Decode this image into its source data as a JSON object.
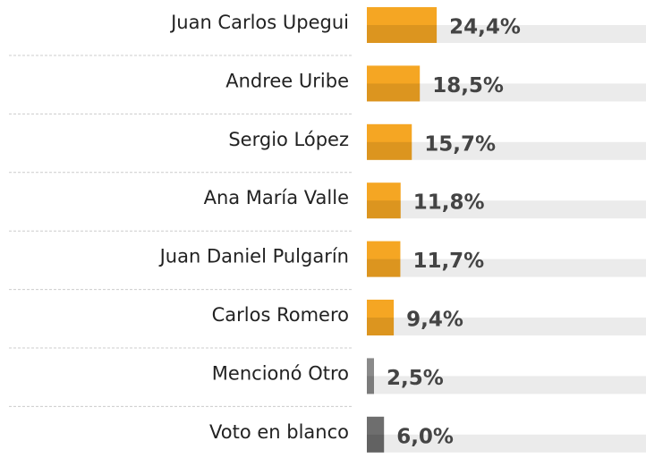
{
  "chart_data": {
    "type": "bar",
    "orientation": "horizontal",
    "categories": [
      "Juan Carlos Upegui",
      "Andree Uribe",
      "Sergio López",
      "Ana María Valle",
      "Juan Daniel Pulgarín",
      "Carlos Romero",
      "Mencionó Otro",
      "Voto en blanco"
    ],
    "values": [
      24.4,
      18.5,
      15.7,
      11.8,
      11.7,
      9.4,
      2.5,
      6.0
    ],
    "value_labels": [
      "24,4%",
      "18,5%",
      "15,7%",
      "11,8%",
      "11,7%",
      "9,4%",
      "2,5%",
      "6,0%"
    ],
    "colors": [
      "#f5a623",
      "#f5a623",
      "#f5a623",
      "#f5a623",
      "#f5a623",
      "#f5a623",
      "#8a8a8a",
      "#6e6e6e"
    ]
  }
}
